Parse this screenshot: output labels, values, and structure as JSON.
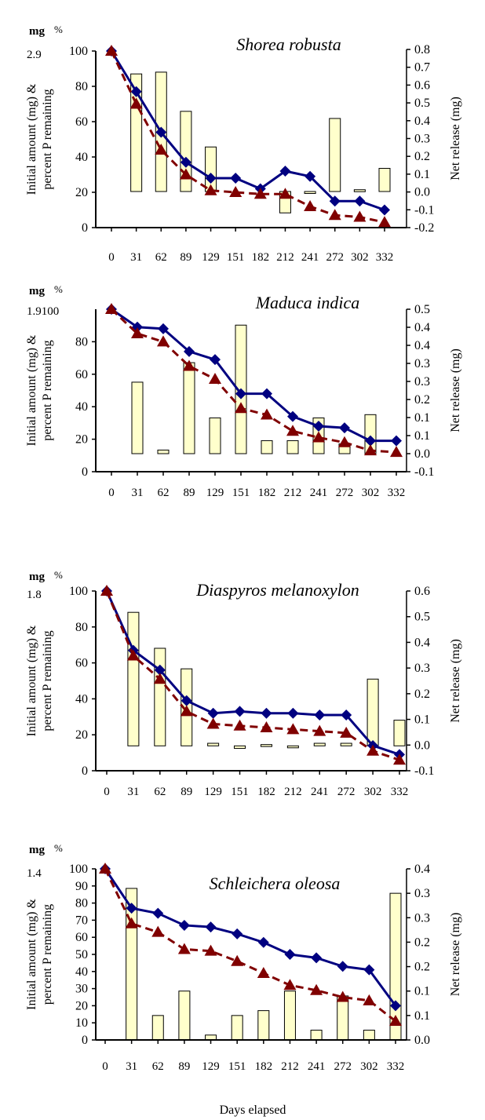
{
  "figure": {
    "xlabel": "Days elapsed",
    "bar_fill": "#ffffcc",
    "line1_color": "#000080",
    "line2_color": "#800000"
  },
  "chart_data": [
    {
      "type": "bar+line",
      "title": "Shorea robusta",
      "initial_amount_label": "2.9",
      "unit_labels": [
        "mg",
        "%"
      ],
      "ylabel_left": [
        "Initial amount (mg) &",
        "percent P remaining"
      ],
      "ylabel_right": "Net release (mg)",
      "categories": [
        "0",
        "31",
        "62",
        "89",
        "129",
        "151",
        "182",
        "212",
        "241",
        "272",
        "302",
        "332"
      ],
      "left_ticks": [
        "0",
        "20",
        "40",
        "60",
        "80",
        "100"
      ],
      "ylim_left": [
        0,
        100
      ],
      "right_ticks": [
        "-0.2",
        "-0.1",
        "0.0",
        "0.1",
        "0.2",
        "0.3",
        "0.4",
        "0.5",
        "0.6",
        "0.7",
        "0.8"
      ],
      "ylim_right": [
        -0.2,
        0.8
      ],
      "series": [
        {
          "kind": "line",
          "style": "solid-diamond",
          "values": [
            100,
            77,
            54,
            37,
            28,
            28,
            22,
            32,
            29,
            15,
            15,
            10
          ]
        },
        {
          "kind": "line",
          "style": "dashed-triangle",
          "values": [
            100,
            70,
            44,
            30,
            21,
            20,
            19,
            19,
            12,
            7,
            6,
            3
          ]
        },
        {
          "kind": "bar",
          "axis": "right",
          "values": [
            null,
            0.66,
            0.67,
            0.45,
            0.25,
            null,
            null,
            -0.12,
            0.0,
            0.41,
            0.01,
            0.13
          ]
        }
      ]
    },
    {
      "type": "bar+line",
      "title": "Maduca indica",
      "initial_amount_label": "1.9100",
      "unit_labels": [
        "mg",
        "%"
      ],
      "ylabel_left": [
        "Initial amount (mg) &",
        "percent P remaining"
      ],
      "ylabel_right": "Net release (mg)",
      "categories": [
        "0",
        "31",
        "62",
        "89",
        "129",
        "151",
        "182",
        "212",
        "241",
        "272",
        "302",
        "332"
      ],
      "left_ticks": [
        "0",
        "20",
        "40",
        "60",
        "80"
      ],
      "ylim_left": [
        0,
        100
      ],
      "right_ticks": [
        "-0.1",
        "0.0",
        "0.1",
        "0.1",
        "0.2",
        "0.3",
        "0.3",
        "0.4",
        "0.4",
        "0.5"
      ],
      "ylim_right": [
        -0.05,
        0.4
      ],
      "series": [
        {
          "kind": "line",
          "style": "solid-diamond",
          "values": [
            100,
            89,
            88,
            74,
            69,
            48,
            48,
            34,
            28,
            27,
            19,
            19
          ]
        },
        {
          "kind": "line",
          "style": "dashed-triangle",
          "values": [
            100,
            85,
            80,
            65,
            57,
            39,
            35,
            25,
            21,
            18,
            13,
            12
          ]
        },
        {
          "kind": "bar",
          "axis": "right",
          "values": [
            null,
            0.198,
            0.01,
            0.252,
            0.099,
            0.356,
            0.036,
            0.036,
            0.099,
            0.027,
            0.108,
            null
          ]
        }
      ]
    },
    {
      "type": "bar+line",
      "title": "Diaspyros melanoxylon",
      "initial_amount_label": "1.8",
      "unit_labels": [
        "mg",
        "%"
      ],
      "ylabel_left": [
        "Initial amount (mg) &",
        "percent P remaining"
      ],
      "ylabel_right": "Net release (mg)",
      "categories": [
        "0",
        "31",
        "62",
        "89",
        "129",
        "151",
        "182",
        "212",
        "241",
        "272",
        "302",
        "332"
      ],
      "left_ticks": [
        "0",
        "20",
        "40",
        "60",
        "80",
        "100"
      ],
      "ylim_left": [
        0,
        100
      ],
      "right_ticks": [
        "-0.1",
        "0.0",
        "0.1",
        "0.2",
        "0.3",
        "0.4",
        "0.5",
        "0.6"
      ],
      "ylim_right": [
        -0.1,
        0.6
      ],
      "series": [
        {
          "kind": "line",
          "style": "solid-diamond",
          "values": [
            100,
            67,
            56,
            39,
            32,
            33,
            32,
            32,
            31,
            31,
            14,
            9
          ]
        },
        {
          "kind": "line",
          "style": "dashed-triangle",
          "values": [
            100,
            64,
            51,
            33,
            26,
            25,
            24,
            23,
            22,
            21,
            11,
            6
          ]
        },
        {
          "kind": "bar",
          "axis": "right",
          "values": [
            null,
            0.52,
            0.38,
            0.3,
            0.01,
            -0.01,
            0.005,
            0.0,
            0.01,
            0.01,
            0.26,
            0.1
          ]
        }
      ]
    },
    {
      "type": "bar+line",
      "title": "Schleichera oleosa",
      "initial_amount_label": "1.4",
      "unit_labels": [
        "mg",
        "%"
      ],
      "ylabel_left": [
        "Initial amount (mg) &",
        "percent P remaining"
      ],
      "ylabel_right": "Net release (mg)",
      "categories": [
        "0",
        "31",
        "62",
        "89",
        "129",
        "151",
        "182",
        "212",
        "241",
        "272",
        "302",
        "332"
      ],
      "left_ticks": [
        "0",
        "10",
        "20",
        "30",
        "40",
        "50",
        "60",
        "70",
        "80",
        "90",
        "100"
      ],
      "ylim_left": [
        0,
        100
      ],
      "right_ticks": [
        "0.0",
        "0.1",
        "0.1",
        "0.2",
        "0.2",
        "0.3",
        "0.3",
        "0.4"
      ],
      "ylim_right": [
        0,
        0.35
      ],
      "series": [
        {
          "kind": "line",
          "style": "solid-diamond",
          "values": [
            100,
            77,
            74,
            67,
            66,
            62,
            57,
            50,
            48,
            43,
            41,
            20
          ]
        },
        {
          "kind": "line",
          "style": "dashed-triangle",
          "values": [
            100,
            68,
            63,
            53,
            52,
            46,
            39,
            32,
            29,
            25,
            23,
            11
          ]
        },
        {
          "kind": "bar",
          "axis": "right",
          "values": [
            null,
            0.31,
            0.05,
            0.1,
            0.01,
            0.05,
            0.06,
            0.1,
            0.02,
            0.09,
            0.02,
            0.3
          ]
        }
      ]
    }
  ]
}
